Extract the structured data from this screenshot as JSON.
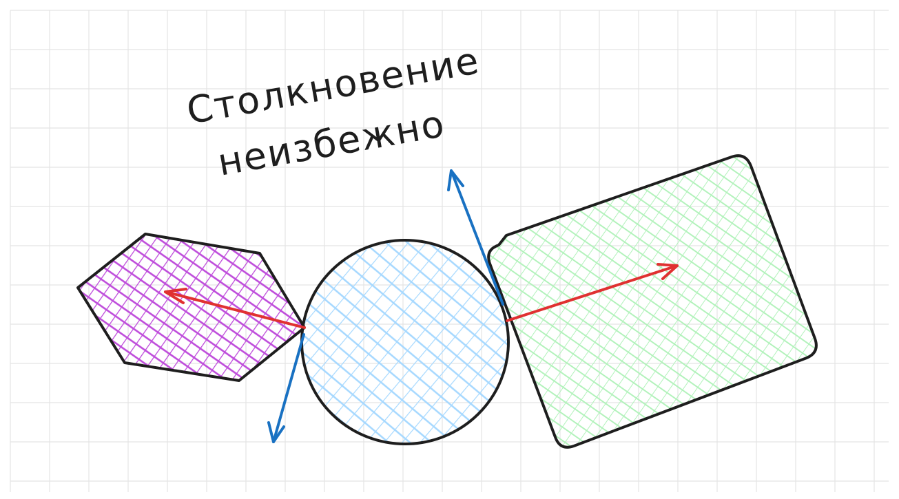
{
  "caption": {
    "line1": "Столкновение",
    "line2": "неизбежно"
  },
  "colors": {
    "grid": "#e4e4e4",
    "outline": "#1e1e1e",
    "hexagon_fill": "#be4bdb",
    "circle_fill": "#a5d8ff",
    "rectangle_fill": "#b2f2bb",
    "force_arrow": "#e03131",
    "tangent_arrow": "#1971c2"
  }
}
